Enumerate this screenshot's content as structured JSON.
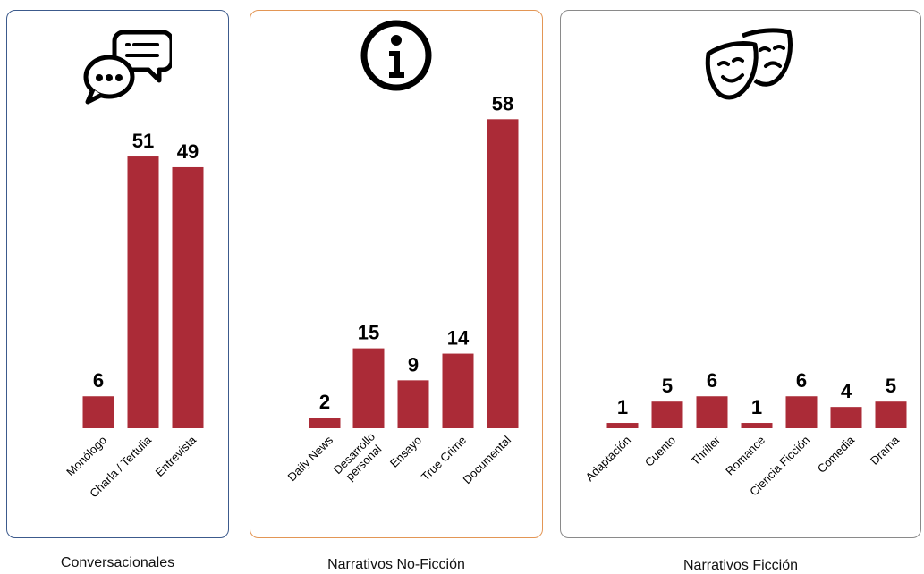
{
  "colors": {
    "bar": "#ab2b37",
    "panel1_border": "#3c5a8c",
    "panel2_border": "#e39655",
    "panel3_border": "#8a8a8a"
  },
  "chart_data": [
    {
      "type": "bar",
      "title": "Conversacionales",
      "icon": "chat-bubbles-icon",
      "categories": [
        "Monólogo",
        "Charla / Tertulia",
        "Entrevista"
      ],
      "values": [
        6,
        51,
        49
      ],
      "ylim": [
        0,
        58
      ]
    },
    {
      "type": "bar",
      "title": "Narrativos No-Ficción",
      "icon": "info-icon",
      "categories": [
        "Daily News",
        "Desarrollo personal",
        "Ensayo",
        "True Crime",
        "Documental"
      ],
      "values": [
        2,
        15,
        9,
        14,
        58
      ],
      "ylim": [
        0,
        58
      ]
    },
    {
      "type": "bar",
      "title": "Narrativos Ficción",
      "icon": "theater-masks-icon",
      "categories": [
        "Adaptación",
        "Cuento",
        "Thriller",
        "Romance",
        "Ciencia Ficción",
        "Comedia",
        "Drama"
      ],
      "values": [
        1,
        5,
        6,
        1,
        6,
        4,
        5
      ],
      "ylim": [
        0,
        58
      ]
    }
  ]
}
